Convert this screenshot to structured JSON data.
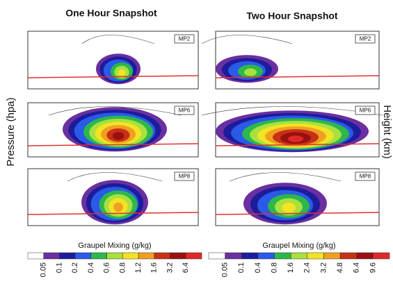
{
  "header": {
    "left_title": "One Hour Snapshot",
    "right_title": "Two Hour Snapshot"
  },
  "axes": {
    "left_label": "Pressure (hpa)",
    "right_label": "Height (km)"
  },
  "panels": {
    "left": [
      "MP2",
      "MP6",
      "MP8"
    ],
    "right": [
      "MP2",
      "MP6",
      "MP8"
    ]
  },
  "colorbars": [
    {
      "title": "Graupel Mixing (g/kg)",
      "labels": [
        "0.05",
        "0.1",
        "0.2",
        "0.4",
        "0.6",
        "0.8",
        "1.2",
        "1.6",
        "3.2",
        "6.4"
      ]
    },
    {
      "title": "Graupel Mixing (g/kg)",
      "labels": [
        "0.05",
        "0.1",
        "0.4",
        "0.8",
        "1.6",
        "2.4",
        "3.2",
        "4.8",
        "6.4",
        "9.6"
      ]
    }
  ]
}
